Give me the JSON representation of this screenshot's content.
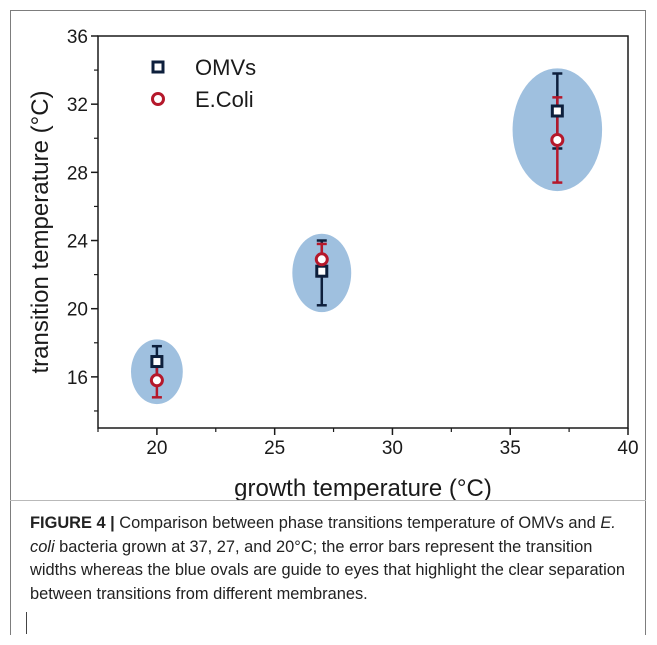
{
  "chart_data": {
    "type": "scatter",
    "xlabel": "growth temperature (°C)",
    "ylabel": "transition temperature (°C)",
    "xlim": [
      17.5,
      40
    ],
    "ylim": [
      13,
      36
    ],
    "xticks": [
      20,
      25,
      30,
      35,
      40
    ],
    "yticks": [
      16,
      20,
      24,
      28,
      32,
      36
    ],
    "legend_position": "top-left",
    "series": [
      {
        "name": "OMVs",
        "marker": "square",
        "color": "#0d1f3c",
        "points": [
          {
            "x": 20,
            "y": 16.9,
            "err_low": 16.0,
            "err_high": 17.8
          },
          {
            "x": 27,
            "y": 22.2,
            "err_low": 20.2,
            "err_high": 24.0
          },
          {
            "x": 37,
            "y": 31.6,
            "err_low": 29.4,
            "err_high": 33.8
          }
        ]
      },
      {
        "name": "E.Coli",
        "marker": "circle",
        "color": "#b5182b",
        "points": [
          {
            "x": 20,
            "y": 15.8,
            "err_low": 14.8,
            "err_high": 16.9
          },
          {
            "x": 27,
            "y": 22.9,
            "err_low": 21.9,
            "err_high": 23.8
          },
          {
            "x": 37,
            "y": 29.9,
            "err_low": 27.4,
            "err_high": 32.4
          }
        ]
      }
    ],
    "ovals": [
      {
        "cx": 20,
        "cy": 16.3,
        "rx": 1.1,
        "ry": 1.9
      },
      {
        "cx": 27,
        "cy": 22.1,
        "rx": 1.25,
        "ry": 2.3
      },
      {
        "cx": 37,
        "cy": 30.5,
        "rx": 1.9,
        "ry": 3.6
      }
    ],
    "oval_color": "#9fc0df"
  },
  "caption": {
    "lead": "FIGURE 4 |",
    "text_before_italic": " Comparison between phase transitions temperature of OMVs and ",
    "italic": "E. coli",
    "text_after_italic": " bacteria grown at 37, 27, and 20°C; the error bars represent the transition widths whereas the blue ovals are guide to eyes that highlight the clear separation between transitions from different membranes."
  }
}
